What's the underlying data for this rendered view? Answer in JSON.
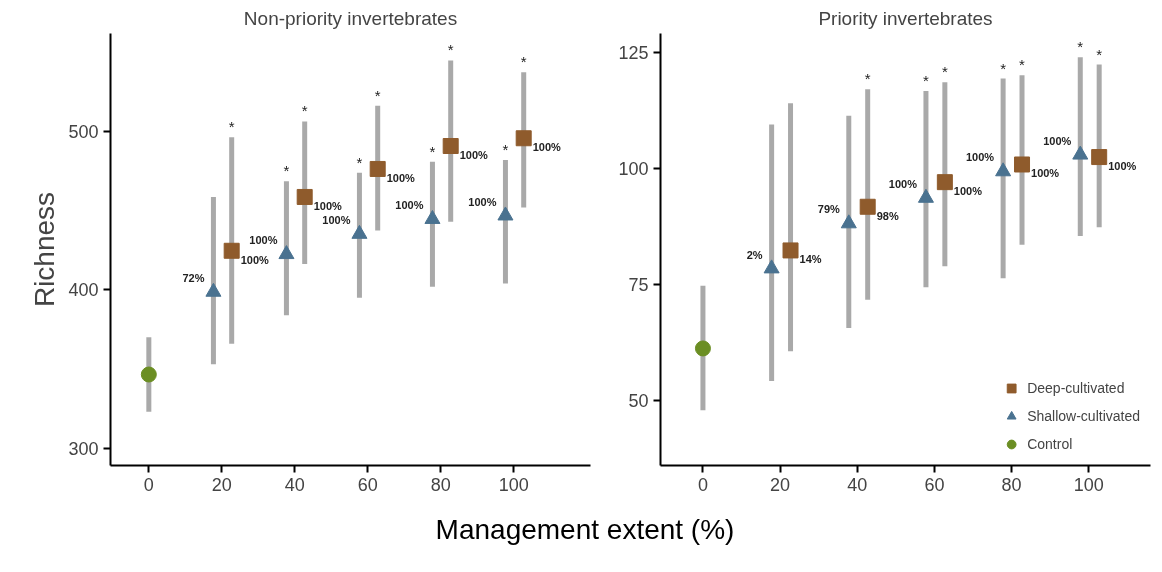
{
  "chart_data": [
    {
      "type": "scatter",
      "title": "Non-priority invertebrates",
      "xlabel": "Management extent (%)",
      "ylabel": "Richness",
      "xlim": [
        -10.5,
        121
      ],
      "xticks": [
        0,
        20,
        40,
        60,
        80,
        100
      ],
      "ylim": [
        289,
        562
      ],
      "yticks": [
        300,
        400,
        500
      ],
      "grid": false,
      "series": [
        {
          "color": "#8f5b2c",
          "marker": "square",
          "x": [
            22.7,
            42.7,
            62.7,
            82.7,
            102.7
          ],
          "values": [
            424.7,
            458.7,
            476.4,
            490.9,
            495.8
          ],
          "errors": [
            [
              366,
              496.4
            ],
            [
              416.4,
              506.4
            ],
            [
              437.5,
              516.4
            ],
            [
              443,
              545
            ],
            [
              452,
              537.5
            ]
          ]
        },
        {
          "color": "#4a7290",
          "marker": "triangle",
          "x": [
            17.7,
            37.7,
            57.7,
            77.7,
            97.7
          ],
          "values": [
            398.7,
            422.5,
            435.3,
            444.7,
            446.9
          ],
          "errors": [
            [
              353,
              458.7
            ],
            [
              384,
              468.7
            ],
            [
              395,
              474
            ],
            [
              402,
              481
            ],
            [
              404,
              482
            ]
          ]
        },
        {
          "color": "#6b8e23",
          "marker": "circle",
          "x": [
            0
          ],
          "values": [
            346.5
          ],
          "errors": [
            [
              323,
              370
            ]
          ]
        }
      ],
      "annotations": [
        {
          "text": "*",
          "x": 22.7,
          "y": 496.4
        },
        {
          "text": "*",
          "x": 42.7,
          "y": 506.4
        },
        {
          "text": "*",
          "x": 62.7,
          "y": 516.4
        },
        {
          "text": "*",
          "x": 82.7,
          "y": 545
        },
        {
          "text": "*",
          "x": 102.7,
          "y": 537.5
        },
        {
          "text": "*",
          "x": 37.7,
          "y": 468.7
        },
        {
          "text": "*",
          "x": 57.7,
          "y": 474
        },
        {
          "text": "*",
          "x": 77.7,
          "y": 481
        },
        {
          "text": "*",
          "x": 97.7,
          "y": 482
        },
        {
          "text": "100%",
          "x": 22.7,
          "y": 424.7
        },
        {
          "text": "100%",
          "x": 42.7,
          "y": 458.7
        },
        {
          "text": "100%",
          "x": 62.7,
          "y": 476.4
        },
        {
          "text": "100%",
          "x": 82.7,
          "y": 490.9
        },
        {
          "text": "100%",
          "x": 102.7,
          "y": 495.8
        },
        {
          "text": "72%",
          "x": 17.7,
          "y": 398.7
        },
        {
          "text": "100%",
          "x": 37.7,
          "y": 422.5
        },
        {
          "text": "100%",
          "x": 57.7,
          "y": 435.3
        },
        {
          "text": "100%",
          "x": 77.7,
          "y": 444.7
        },
        {
          "text": "100%",
          "x": 97.7,
          "y": 446.9
        }
      ]
    },
    {
      "type": "scatter",
      "title": "Priority invertebrates",
      "xlim": [
        -11,
        116
      ],
      "xticks": [
        0,
        20,
        40,
        60,
        80,
        100
      ],
      "ylim": [
        36,
        129
      ],
      "yticks": [
        50,
        75,
        100,
        125
      ],
      "grid": false,
      "legend": "bottom right",
      "series": [
        {
          "name": "Deep-cultivated",
          "color": "#8f5b2c",
          "marker": "square",
          "x": [
            22.7,
            42.7,
            62.7,
            82.7,
            102.7
          ],
          "values": [
            82.3,
            91.7,
            97.0,
            100.8,
            102.4
          ],
          "errors": [
            [
              60.6,
              114
            ],
            [
              71.7,
              117
            ],
            [
              78.9,
              118.5
            ],
            [
              83.5,
              120
            ],
            [
              87.3,
              122.3
            ]
          ]
        },
        {
          "name": "Shallow-cultivated",
          "color": "#4a7290",
          "marker": "triangle",
          "x": [
            17.8,
            37.8,
            57.8,
            77.8,
            97.8
          ],
          "values": [
            78.4,
            88.1,
            93.6,
            99.3,
            102.9
          ],
          "errors": [
            [
              54.2,
              109.4
            ],
            [
              65.6,
              111.3
            ],
            [
              74.4,
              116.6
            ],
            [
              76.3,
              119.3
            ],
            [
              85.4,
              123.9
            ]
          ]
        },
        {
          "name": "Control",
          "color": "#6b8e23",
          "marker": "circle",
          "x": [
            0
          ],
          "values": [
            61.2
          ],
          "errors": [
            [
              47.9,
              74.7
            ]
          ]
        }
      ],
      "annotations": [
        {
          "text": "*",
          "x": 42.7,
          "y": 117
        },
        {
          "text": "*",
          "x": 62.7,
          "y": 118.5
        },
        {
          "text": "*",
          "x": 82.7,
          "y": 120
        },
        {
          "text": "*",
          "x": 102.7,
          "y": 122.3
        },
        {
          "text": "*",
          "x": 57.8,
          "y": 116.6
        },
        {
          "text": "*",
          "x": 77.8,
          "y": 119.3
        },
        {
          "text": "*",
          "x": 97.8,
          "y": 123.9
        },
        {
          "text": "14%",
          "x": 22.7,
          "y": 82.3
        },
        {
          "text": "98%",
          "x": 42.7,
          "y": 91.7
        },
        {
          "text": "100%",
          "x": 62.7,
          "y": 97.0
        },
        {
          "text": "100%",
          "x": 82.7,
          "y": 100.8
        },
        {
          "text": "100%",
          "x": 102.7,
          "y": 102.4
        },
        {
          "text": "2%",
          "x": 17.8,
          "y": 78.4
        },
        {
          "text": "79%",
          "x": 37.8,
          "y": 88.1
        },
        {
          "text": "100%",
          "x": 57.8,
          "y": 93.6
        },
        {
          "text": "100%",
          "x": 77.8,
          "y": 99.3
        },
        {
          "text": "100%",
          "x": 97.8,
          "y": 102.9
        }
      ]
    }
  ]
}
